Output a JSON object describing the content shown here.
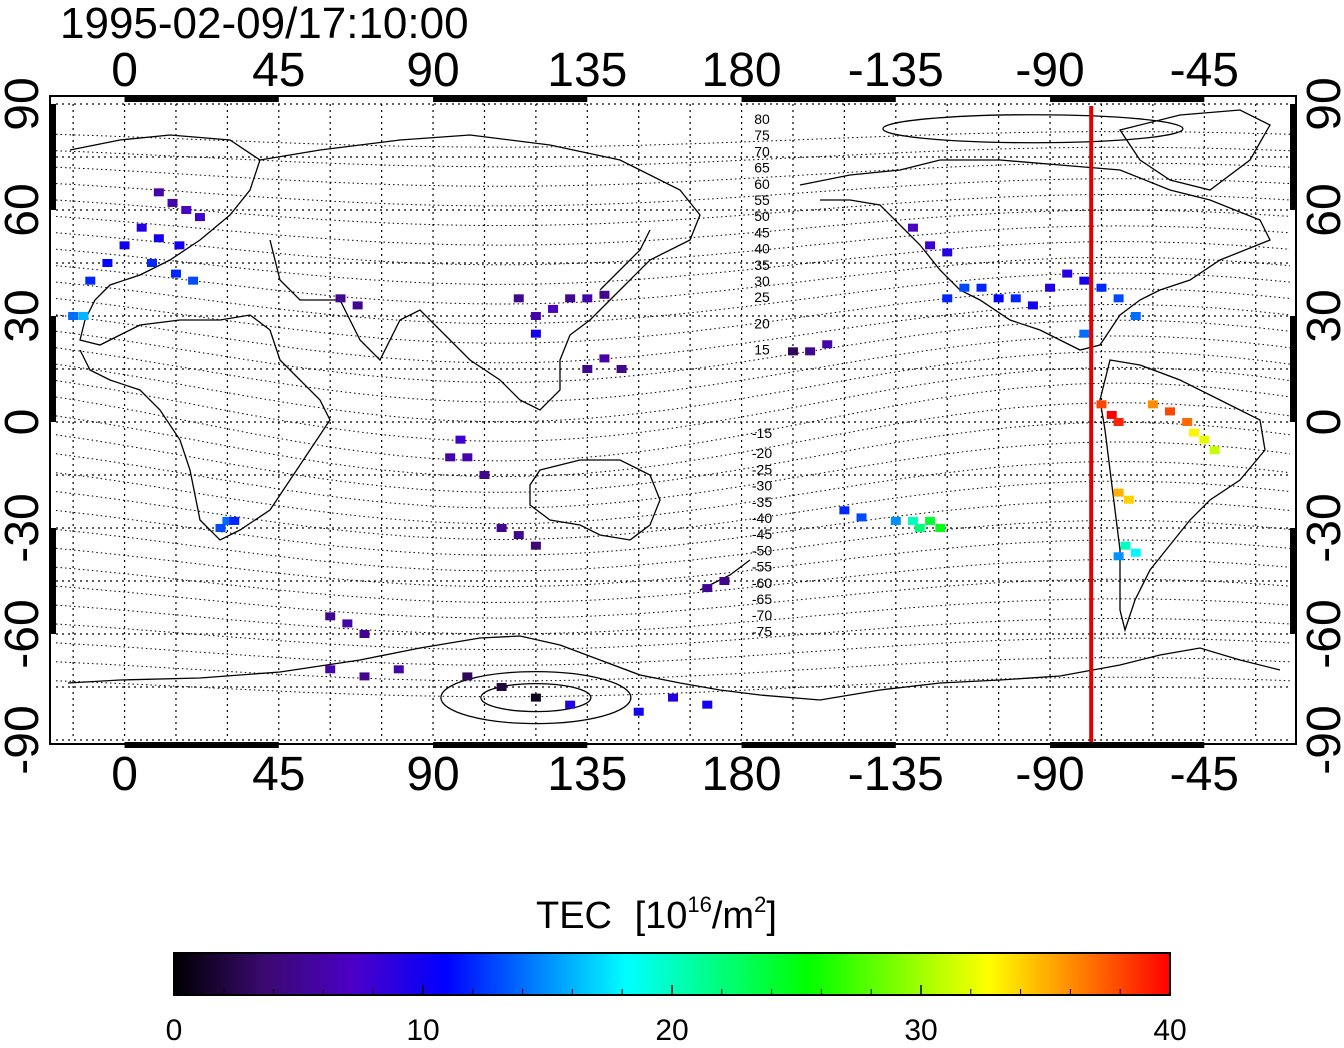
{
  "title": "1995-02-09/17:10:00",
  "map": {
    "lon_ticks_labels": [
      "0",
      "45",
      "90",
      "135",
      "180",
      "-135",
      "-90",
      "-45"
    ],
    "lat_ticks_labels": [
      "90",
      "60",
      "30",
      "0",
      "-30",
      "-60",
      "-90"
    ],
    "magnetic_lat_labels_north": [
      "80",
      "75",
      "70",
      "65",
      "60",
      "55",
      "50",
      "45",
      "40",
      "35",
      "30",
      "25",
      "20",
      "15"
    ],
    "magnetic_lat_labels_south": [
      "-15",
      "-20",
      "-25",
      "-30",
      "-35",
      "-40",
      "-45",
      "-50",
      "-55",
      "-60",
      "-65",
      "-70",
      "-75"
    ],
    "terminator_line_color": "#e00000",
    "grid": "dotted"
  },
  "colorbar": {
    "title": "TEC",
    "unit_prefix": "[10",
    "unit_exp": "16",
    "unit_mid": "/m",
    "unit_exp2": "2",
    "unit_suffix": "]",
    "ticks": [
      "0",
      "10",
      "20",
      "30",
      "40"
    ],
    "range": [
      0,
      40
    ],
    "colors": [
      "#000000",
      "#3a0a6e",
      "#4b00c8",
      "#0000ff",
      "#0080ff",
      "#00ffff",
      "#00ff80",
      "#00ff00",
      "#80ff00",
      "#ffff00",
      "#ff8000",
      "#ff0000"
    ]
  },
  "chart_data": {
    "type": "scatter",
    "title": "1995-02-09/17:10:00",
    "xlabel": "",
    "ylabel": "",
    "xlim": [
      -20,
      340
    ],
    "ylim": [
      -90,
      90
    ],
    "colorbar_label": "TEC [10^16/m^2]",
    "clim": [
      0,
      40
    ],
    "terminator_longitude": -78,
    "points": [
      [
        10,
        65,
        6
      ],
      [
        14,
        62,
        6
      ],
      [
        18,
        60,
        7
      ],
      [
        22,
        58,
        8
      ],
      [
        5,
        55,
        9
      ],
      [
        10,
        52,
        10
      ],
      [
        16,
        50,
        10
      ],
      [
        0,
        50,
        10
      ],
      [
        -5,
        45,
        11
      ],
      [
        8,
        45,
        12
      ],
      [
        15,
        42,
        12
      ],
      [
        -10,
        40,
        12
      ],
      [
        20,
        40,
        13
      ],
      [
        -15,
        30,
        14
      ],
      [
        -12,
        30,
        16
      ],
      [
        30,
        -28,
        14
      ],
      [
        28,
        -30,
        13
      ],
      [
        32,
        -28,
        12
      ],
      [
        63,
        35,
        5
      ],
      [
        68,
        33,
        5
      ],
      [
        95,
        -10,
        6
      ],
      [
        100,
        -10,
        6
      ],
      [
        105,
        -15,
        5
      ],
      [
        98,
        -5,
        8
      ],
      [
        110,
        -30,
        5
      ],
      [
        115,
        -32,
        5
      ],
      [
        120,
        -35,
        4
      ],
      [
        115,
        35,
        5
      ],
      [
        120,
        30,
        6
      ],
      [
        125,
        32,
        7
      ],
      [
        130,
        35,
        5
      ],
      [
        135,
        35,
        6
      ],
      [
        140,
        36,
        5
      ],
      [
        120,
        25,
        10
      ],
      [
        135,
        15,
        5
      ],
      [
        140,
        18,
        6
      ],
      [
        145,
        15,
        5
      ],
      [
        60,
        -55,
        5
      ],
      [
        65,
        -57,
        6
      ],
      [
        70,
        -60,
        5
      ],
      [
        60,
        -70,
        6
      ],
      [
        70,
        -72,
        5
      ],
      [
        80,
        -70,
        6
      ],
      [
        100,
        -72,
        3
      ],
      [
        110,
        -75,
        2
      ],
      [
        120,
        -78,
        1
      ],
      [
        130,
        -80,
        9
      ],
      [
        150,
        -82,
        10
      ],
      [
        160,
        -78,
        9
      ],
      [
        170,
        -80,
        10
      ],
      [
        170,
        -47,
        5
      ],
      [
        175,
        -45,
        5
      ],
      [
        195,
        20,
        3
      ],
      [
        200,
        20,
        5
      ],
      [
        205,
        22,
        6
      ],
      [
        210,
        -25,
        12
      ],
      [
        215,
        -27,
        13
      ],
      [
        225,
        -28,
        15
      ],
      [
        230,
        -28,
        20
      ],
      [
        232,
        -30,
        22
      ],
      [
        235,
        -28,
        24
      ],
      [
        238,
        -30,
        25
      ],
      [
        230,
        55,
        7
      ],
      [
        235,
        50,
        8
      ],
      [
        240,
        48,
        9
      ],
      [
        240,
        35,
        12
      ],
      [
        245,
        38,
        13
      ],
      [
        250,
        38,
        12
      ],
      [
        255,
        35,
        11
      ],
      [
        260,
        35,
        12
      ],
      [
        265,
        33,
        10
      ],
      [
        270,
        38,
        9
      ],
      [
        275,
        42,
        9
      ],
      [
        280,
        40,
        10
      ],
      [
        285,
        38,
        12
      ],
      [
        290,
        35,
        13
      ],
      [
        295,
        30,
        14
      ],
      [
        280,
        25,
        14
      ],
      [
        285,
        5,
        38
      ],
      [
        288,
        2,
        40
      ],
      [
        290,
        0,
        39
      ],
      [
        300,
        5,
        36
      ],
      [
        305,
        3,
        38
      ],
      [
        310,
        0,
        37
      ],
      [
        312,
        -3,
        33
      ],
      [
        315,
        -5,
        32
      ],
      [
        318,
        -8,
        31
      ],
      [
        290,
        -20,
        35
      ],
      [
        293,
        -22,
        34
      ],
      [
        292,
        -35,
        20
      ],
      [
        295,
        -37,
        18
      ],
      [
        290,
        -38,
        15
      ]
    ]
  }
}
